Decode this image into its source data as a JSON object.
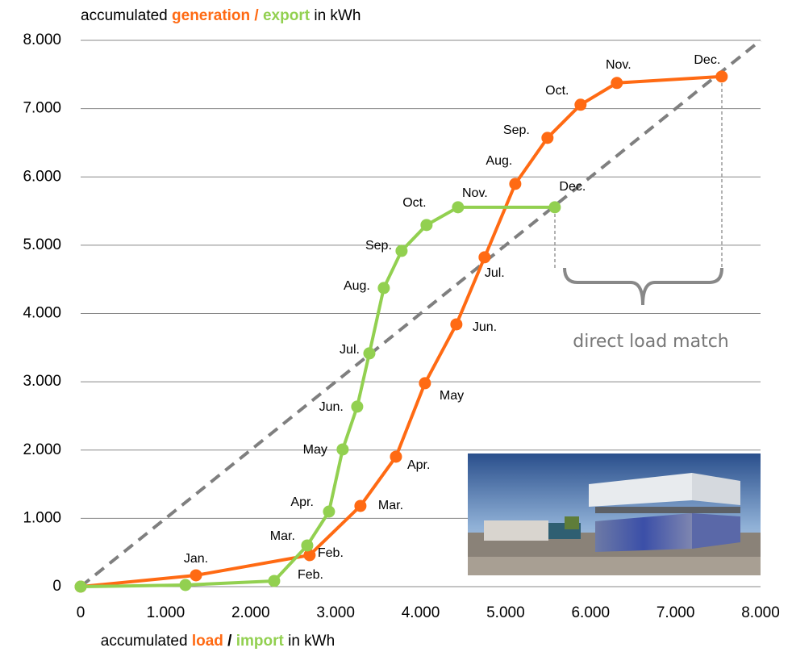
{
  "chart_data": {
    "type": "line",
    "y_label": [
      "accumulated",
      "generation",
      "/",
      "export",
      "in kWh"
    ],
    "x_label": [
      "accumulated",
      "load",
      "/",
      "import",
      "in kWh"
    ],
    "annotation": "direct load match",
    "xlim": [
      0,
      8000
    ],
    "ylim": [
      0,
      8000
    ],
    "xticks": [
      0,
      {
        "value": 1000,
        "label": "1.000"
      },
      {
        "value": 2000,
        "label": "2.000"
      },
      {
        "value": 3000,
        "label": "3.000"
      },
      {
        "value": 4000,
        "label": "4.000"
      },
      {
        "value": 5000,
        "label": "5.000"
      },
      {
        "value": 6000,
        "label": "6.000"
      },
      {
        "value": 7000,
        "label": "7.000"
      },
      {
        "value": 8000,
        "label": "8.000"
      }
    ],
    "yticks": [
      0,
      {
        "value": 1000,
        "label": "1.000"
      },
      {
        "value": 2000,
        "label": "2.000"
      },
      {
        "value": 3000,
        "label": "3.000"
      },
      {
        "value": 4000,
        "label": "4.000"
      },
      {
        "value": 5000,
        "label": "5.000"
      },
      {
        "value": 6000,
        "label": "6.000"
      },
      {
        "value": 7000,
        "label": "7.000"
      },
      {
        "value": 8000,
        "label": "8.000"
      }
    ],
    "grid": true,
    "series": [
      {
        "color": "#ff6a13",
        "labels": [
          null,
          "Jan.",
          "Feb.",
          "Mar.",
          "Apr.",
          "May",
          "Jun.",
          "Jul.",
          "Aug.",
          "Sep.",
          "Oct.",
          "Nov.",
          "Dec."
        ],
        "x": [
          0,
          1357,
          2694,
          3292,
          3710,
          4051,
          4421,
          4753,
          5114,
          5493,
          5882,
          6309,
          7543
        ],
        "values": [
          0,
          166,
          461,
          1182,
          1903,
          2979,
          3841,
          4823,
          5898,
          6572,
          7057,
          7376,
          7470
        ]
      },
      {
        "color": "#92d050",
        "labels": [
          null,
          null,
          "Feb.",
          "Mar.",
          "Apr.",
          "May",
          "Jun.",
          "Jul.",
          "Aug.",
          "Sep.",
          "Oct.",
          "Nov.",
          "Dec."
        ],
        "x": [
          0,
          1233,
          2277,
          2666,
          2922,
          3083,
          3254,
          3397,
          3567,
          3776,
          4070,
          4440,
          5579
        ],
        "values": [
          0,
          24,
          83,
          603,
          1099,
          2009,
          2636,
          3416,
          4373,
          4917,
          5296,
          5556,
          5556
        ]
      }
    ]
  }
}
